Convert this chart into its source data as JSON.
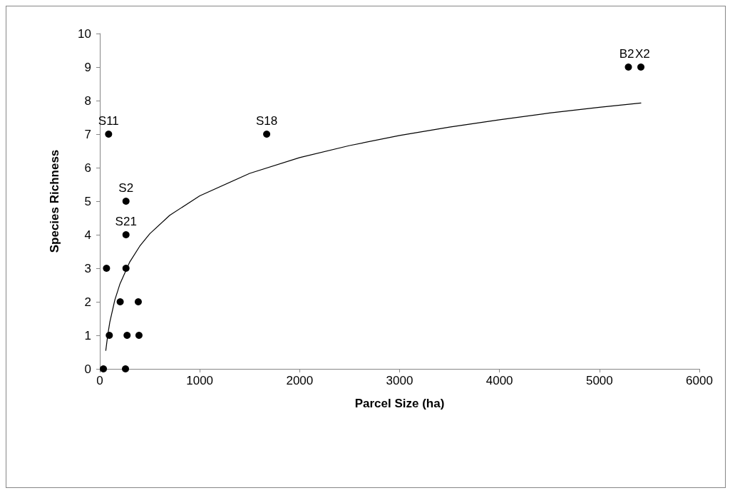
{
  "chart_data": {
    "type": "scatter",
    "xlabel": "Parcel Size (ha)",
    "ylabel": "Species Richness",
    "xlim": [
      0,
      6000
    ],
    "xticks": [
      0,
      1000,
      2000,
      3000,
      4000,
      5000,
      6000
    ],
    "ylim": [
      0,
      10
    ],
    "yticks": [
      0,
      1,
      2,
      3,
      4,
      5,
      6,
      7,
      8,
      9,
      10
    ],
    "grid": false,
    "marker": "circle",
    "series": [
      {
        "color": "#000000",
        "x": [
          36,
          257,
          67,
          262,
          204,
          385,
          95,
          273,
          392,
          262,
          262,
          88,
          1670,
          5290,
          5415
        ],
        "values": [
          0,
          0,
          3,
          3,
          2,
          2,
          1,
          1,
          1,
          4,
          5,
          7,
          7,
          9,
          9
        ]
      },
      {
        "type": "line",
        "color": "#000000",
        "marker": "none",
        "line_style": "solid",
        "x": [
          60,
          80,
          100,
          150,
          200,
          300,
          400,
          500,
          700,
          1000,
          1500,
          2000,
          2500,
          3000,
          3500,
          4000,
          4500,
          5000,
          5415
        ],
        "values": [
          0.55,
          1.02,
          1.39,
          2.05,
          2.52,
          3.19,
          3.66,
          4.03,
          4.58,
          5.16,
          5.83,
          6.3,
          6.66,
          6.96,
          7.21,
          7.43,
          7.63,
          7.8,
          7.93
        ]
      }
    ],
    "annotations": [
      {
        "text": "S11",
        "x": 88,
        "y": 7
      },
      {
        "text": "S2",
        "x": 262,
        "y": 5
      },
      {
        "text": "S21",
        "x": 262,
        "y": 4
      },
      {
        "text": "S18",
        "x": 1670,
        "y": 7
      },
      {
        "text": "B2",
        "x": 5290,
        "y": 9
      },
      {
        "text": "X2",
        "x": 5415,
        "y": 9
      }
    ]
  }
}
